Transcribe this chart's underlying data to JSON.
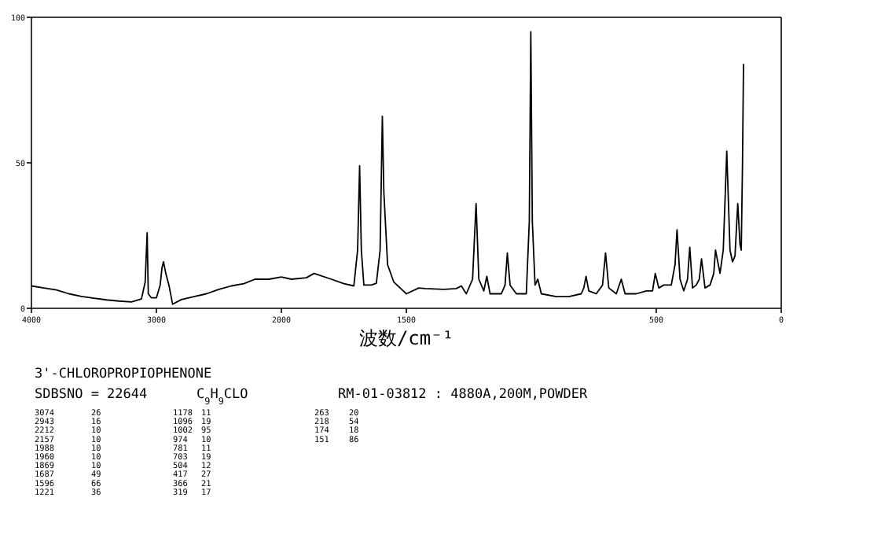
{
  "chart_data": [
    {
      "type": "line",
      "title": "3'-CHLOROPROPIOPHENONE",
      "xlabel": "波数/cm⁻¹",
      "tick_labels": "xy",
      "xlim": [
        4000,
        2000
      ],
      "xticks": [
        4000,
        3000
      ],
      "ylim": [
        0,
        100
      ],
      "yticks": [
        0,
        50,
        100
      ],
      "series": [
        {
          "color": "#000000",
          "x": [
            4000,
            3900,
            3800,
            3700,
            3600,
            3500,
            3400,
            3300,
            3200,
            3120,
            3090,
            3074,
            3065,
            3040,
            3000,
            2970,
            2955,
            2943,
            2925,
            2900,
            2870,
            2800,
            2700,
            2600,
            2500,
            2400,
            2300,
            2212,
            2157,
            2100,
            2000
          ],
          "values": [
            7.7,
            7,
            6.3,
            5,
            4.1,
            3.5,
            2.9,
            2.5,
            2.2,
            3.2,
            9,
            26,
            5,
            3.6,
            3.6,
            8,
            14,
            16,
            12,
            8,
            1.4,
            3,
            4,
            5,
            6.5,
            7.7,
            8.5,
            10,
            10,
            10,
            10.8
          ]
        }
      ],
      "annotations": [
        "SDBSNO = 22644",
        "C$_{9}$H$_{9}$CLO",
        "RM-01-03812 : 4880A,200M,POWDER",
        "3074",
        "26",
        "2943",
        "16",
        "2212",
        "10",
        "2157",
        "10",
        "1988",
        "10",
        "1960",
        "10",
        "1869",
        "10",
        "1687",
        "49",
        "1596",
        "66",
        "1221",
        "36",
        "1178",
        "11",
        "1096",
        "19",
        "1002",
        "95",
        "974",
        "10",
        "781",
        "11",
        "703",
        "19",
        "504",
        "12",
        "417",
        "27",
        "366",
        "21",
        "319",
        "17",
        "263",
        "20",
        "218",
        "54",
        "174",
        "18",
        "151",
        "86"
      ]
    },
    {
      "type": "line",
      "tick_labels": "x",
      "xlim": [
        2000,
        0
      ],
      "xticks": [
        2000,
        1500,
        500,
        0
      ],
      "ylim": [
        0,
        100
      ],
      "series": [
        {
          "color": "#000000",
          "x": [
            2000,
            1960,
            1900,
            1869,
            1800,
            1750,
            1710,
            1695,
            1687,
            1680,
            1670,
            1640,
            1620,
            1605,
            1596,
            1590,
            1575,
            1550,
            1500,
            1450,
            1424,
            1350,
            1300,
            1280,
            1260,
            1235,
            1221,
            1210,
            1190,
            1178,
            1165,
            1120,
            1105,
            1096,
            1085,
            1060,
            1020,
            1008,
            1002,
            996,
            985,
            974,
            960,
            900,
            850,
            800,
            790,
            781,
            770,
            740,
            715,
            703,
            690,
            660,
            640,
            625,
            580,
            540,
            515,
            504,
            490,
            470,
            440,
            425,
            417,
            405,
            390,
            375,
            366,
            355,
            340,
            328,
            319,
            305,
            285,
            270,
            263,
            245,
            232,
            218,
            205,
            195,
            185,
            174,
            165,
            160,
            155,
            151
          ],
          "values": [
            10.8,
            10,
            10.5,
            12,
            10,
            8.5,
            7.7,
            20,
            49,
            20,
            8,
            8,
            8.6,
            20,
            66,
            40,
            15,
            9,
            5,
            7,
            6.8,
            6.5,
            6.8,
            7.7,
            5,
            10,
            36,
            10,
            6,
            11,
            5,
            5,
            8,
            19,
            8,
            5,
            5,
            30,
            95,
            30,
            8,
            10,
            5,
            4,
            4,
            5,
            7,
            11,
            6,
            5,
            8,
            19,
            7,
            5,
            10,
            5,
            5,
            6,
            6,
            12,
            7,
            8,
            8,
            15,
            27,
            10,
            6,
            10,
            21,
            7,
            8,
            10,
            17,
            7,
            8,
            12,
            20,
            12,
            20,
            54,
            20,
            16,
            18,
            36,
            22,
            20,
            50,
            84
          ]
        }
      ]
    }
  ]
}
